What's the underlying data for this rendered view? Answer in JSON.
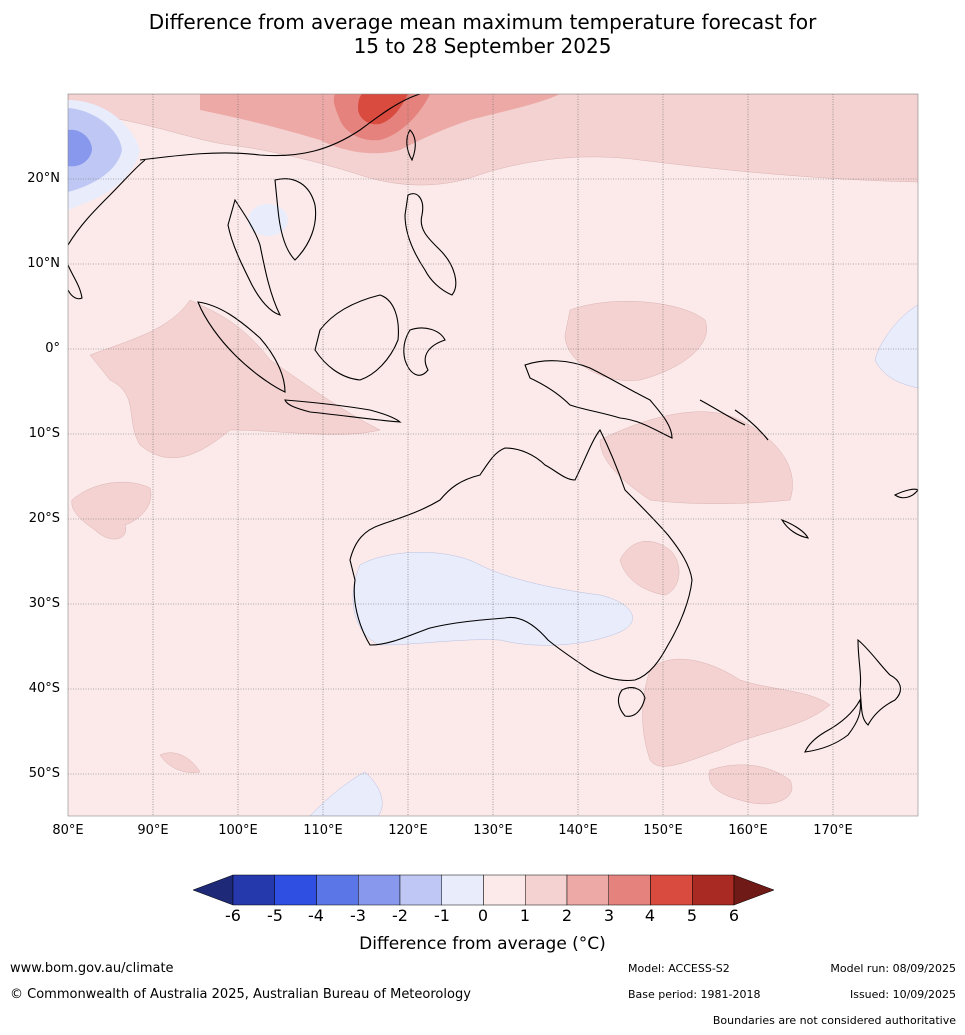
{
  "title": {
    "line1": "Difference from average mean maximum temperature forecast for",
    "line2": "15 to 28 September 2025"
  },
  "map": {
    "lat_labels": [
      "20°N",
      "10°N",
      "0°",
      "10°S",
      "20°S",
      "30°S",
      "40°S",
      "50°S"
    ],
    "lon_labels": [
      "80°E",
      "90°E",
      "100°E",
      "110°E",
      "120°E",
      "130°E",
      "140°E",
      "150°E",
      "160°E",
      "170°E"
    ],
    "extent": {
      "lon_min": 80,
      "lon_max": 180,
      "lat_min": -55,
      "lat_max": 30
    },
    "background_anomaly": "0 to 1"
  },
  "colorbar": {
    "ticks": [
      "-6",
      "-5",
      "-4",
      "-3",
      "-2",
      "-1",
      "0",
      "1",
      "2",
      "3",
      "4",
      "5",
      "6"
    ],
    "colors": [
      "#2539ad",
      "#2f4fe2",
      "#5b76e6",
      "#8798ed",
      "#bfc8f4",
      "#e8ecfb",
      "#fceaea",
      "#f4d2d1",
      "#eca9a6",
      "#e5827d",
      "#d94a3f",
      "#a82a22"
    ],
    "under_color": "#1e2a78",
    "over_color": "#6f1a16",
    "label": "Difference from average (°C)"
  },
  "footer": {
    "website": "www.bom.gov.au/climate",
    "copyright": "© Commonwealth of Australia 2025, Australian Bureau of Meteorology",
    "model": "Model: ACCESS-S2",
    "base_period": "Base period: 1981-2018",
    "model_run": "Model run: 08/09/2025",
    "issued": "Issued: 10/09/2025",
    "disclaimer": "Boundaries are not considered authoritative"
  }
}
